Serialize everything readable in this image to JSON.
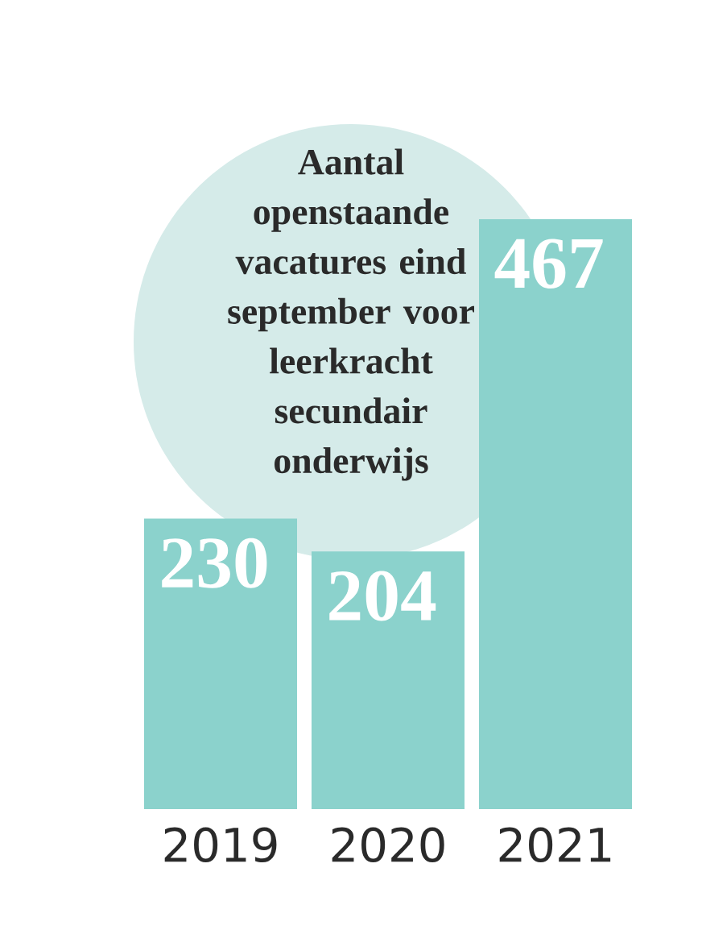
{
  "chart_data": {
    "type": "bar",
    "title": "Aantal openstaande vacatures eind september voor leerkracht secundair onderwijs",
    "categories": [
      "2019",
      "2020",
      "2021"
    ],
    "values": [
      230,
      204,
      467
    ],
    "color": "#8bd2cc",
    "data_labels": true
  }
}
